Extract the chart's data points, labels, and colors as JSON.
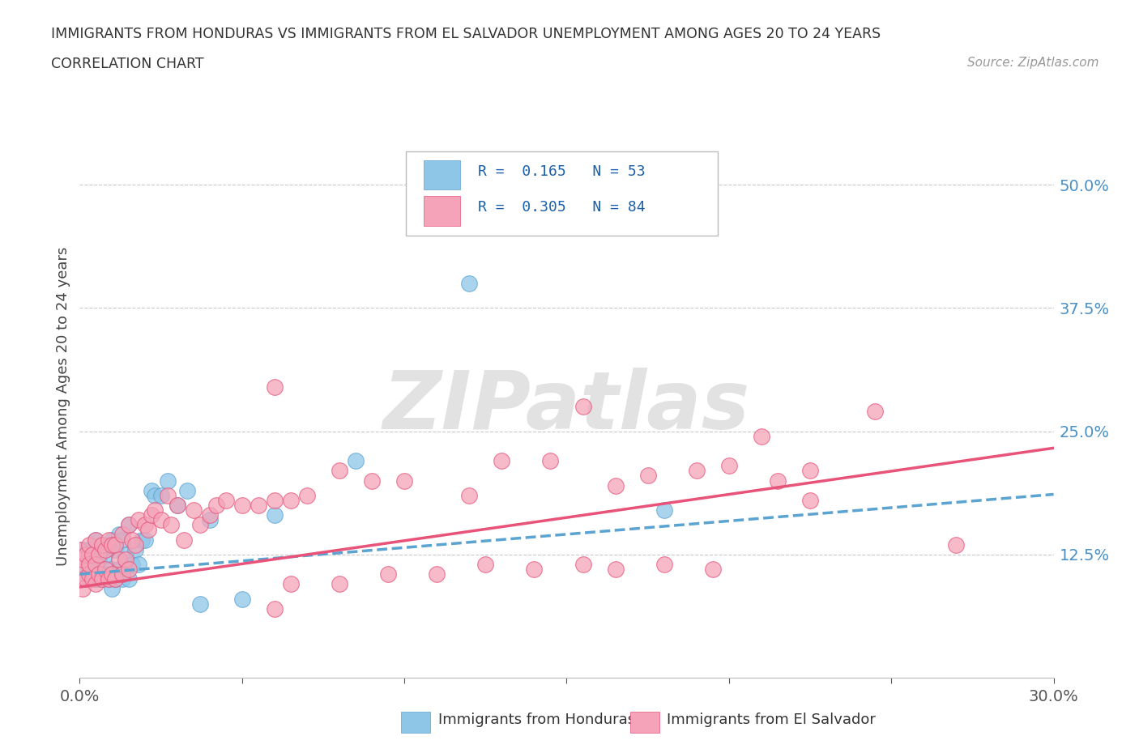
{
  "title_line1": "IMMIGRANTS FROM HONDURAS VS IMMIGRANTS FROM EL SALVADOR UNEMPLOYMENT AMONG AGES 20 TO 24 YEARS",
  "title_line2": "CORRELATION CHART",
  "source_text": "Source: ZipAtlas.com",
  "ylabel": "Unemployment Among Ages 20 to 24 years",
  "xlim": [
    0.0,
    0.3
  ],
  "ylim": [
    0.0,
    0.55
  ],
  "ytick_positions": [
    0.0,
    0.125,
    0.25,
    0.375,
    0.5
  ],
  "ytick_labels_right": [
    "",
    "12.5%",
    "25.0%",
    "37.5%",
    "50.0%"
  ],
  "xtick_labels": [
    "0.0%",
    "",
    "",
    "",
    "",
    "",
    "30.0%"
  ],
  "legend_label1": "Immigrants from Honduras",
  "legend_label2": "Immigrants from El Salvador",
  "blue_color": "#8ec6e8",
  "pink_color": "#f4a3b8",
  "blue_line_color": "#5ba3d0",
  "pink_line_color": "#e8537a",
  "watermark_color": "#d8d8d8",
  "blue_intercept": 0.105,
  "blue_slope": 0.27,
  "pink_intercept": 0.092,
  "pink_slope": 0.47,
  "blue_points_x": [
    0.0,
    0.0,
    0.001,
    0.001,
    0.001,
    0.002,
    0.002,
    0.003,
    0.003,
    0.003,
    0.004,
    0.004,
    0.005,
    0.005,
    0.005,
    0.006,
    0.006,
    0.007,
    0.007,
    0.008,
    0.008,
    0.009,
    0.009,
    0.01,
    0.01,
    0.01,
    0.011,
    0.011,
    0.012,
    0.012,
    0.013,
    0.013,
    0.014,
    0.015,
    0.015,
    0.016,
    0.017,
    0.018,
    0.019,
    0.02,
    0.022,
    0.023,
    0.025,
    0.027,
    0.03,
    0.033,
    0.037,
    0.04,
    0.05,
    0.06,
    0.085,
    0.12,
    0.18
  ],
  "blue_points_y": [
    0.1,
    0.125,
    0.1,
    0.115,
    0.13,
    0.1,
    0.12,
    0.105,
    0.115,
    0.13,
    0.1,
    0.125,
    0.1,
    0.115,
    0.14,
    0.1,
    0.12,
    0.1,
    0.13,
    0.105,
    0.125,
    0.1,
    0.135,
    0.09,
    0.11,
    0.14,
    0.1,
    0.13,
    0.11,
    0.145,
    0.1,
    0.14,
    0.125,
    0.1,
    0.155,
    0.115,
    0.13,
    0.115,
    0.14,
    0.14,
    0.19,
    0.185,
    0.185,
    0.2,
    0.175,
    0.19,
    0.075,
    0.16,
    0.08,
    0.165,
    0.22,
    0.4,
    0.17
  ],
  "pink_points_x": [
    0.0,
    0.0,
    0.0,
    0.001,
    0.001,
    0.002,
    0.002,
    0.003,
    0.003,
    0.003,
    0.004,
    0.004,
    0.005,
    0.005,
    0.005,
    0.006,
    0.006,
    0.007,
    0.007,
    0.008,
    0.008,
    0.009,
    0.009,
    0.01,
    0.01,
    0.011,
    0.011,
    0.012,
    0.013,
    0.013,
    0.014,
    0.015,
    0.015,
    0.016,
    0.017,
    0.018,
    0.02,
    0.021,
    0.022,
    0.023,
    0.025,
    0.027,
    0.028,
    0.03,
    0.032,
    0.035,
    0.037,
    0.04,
    0.042,
    0.045,
    0.05,
    0.055,
    0.06,
    0.065,
    0.07,
    0.08,
    0.09,
    0.1,
    0.12,
    0.13,
    0.145,
    0.155,
    0.165,
    0.175,
    0.19,
    0.2,
    0.215,
    0.225,
    0.06,
    0.065,
    0.08,
    0.095,
    0.11,
    0.125,
    0.14,
    0.155,
    0.165,
    0.18,
    0.195,
    0.06,
    0.21,
    0.225,
    0.245,
    0.27
  ],
  "pink_points_y": [
    0.1,
    0.115,
    0.13,
    0.09,
    0.12,
    0.1,
    0.125,
    0.105,
    0.115,
    0.135,
    0.1,
    0.125,
    0.095,
    0.115,
    0.14,
    0.105,
    0.125,
    0.1,
    0.135,
    0.11,
    0.13,
    0.1,
    0.14,
    0.105,
    0.135,
    0.1,
    0.135,
    0.12,
    0.105,
    0.145,
    0.12,
    0.11,
    0.155,
    0.14,
    0.135,
    0.16,
    0.155,
    0.15,
    0.165,
    0.17,
    0.16,
    0.185,
    0.155,
    0.175,
    0.14,
    0.17,
    0.155,
    0.165,
    0.175,
    0.18,
    0.175,
    0.175,
    0.18,
    0.18,
    0.185,
    0.21,
    0.2,
    0.2,
    0.185,
    0.22,
    0.22,
    0.275,
    0.195,
    0.205,
    0.21,
    0.215,
    0.2,
    0.18,
    0.07,
    0.095,
    0.095,
    0.105,
    0.105,
    0.115,
    0.11,
    0.115,
    0.11,
    0.115,
    0.11,
    0.295,
    0.245,
    0.21,
    0.27,
    0.135
  ]
}
